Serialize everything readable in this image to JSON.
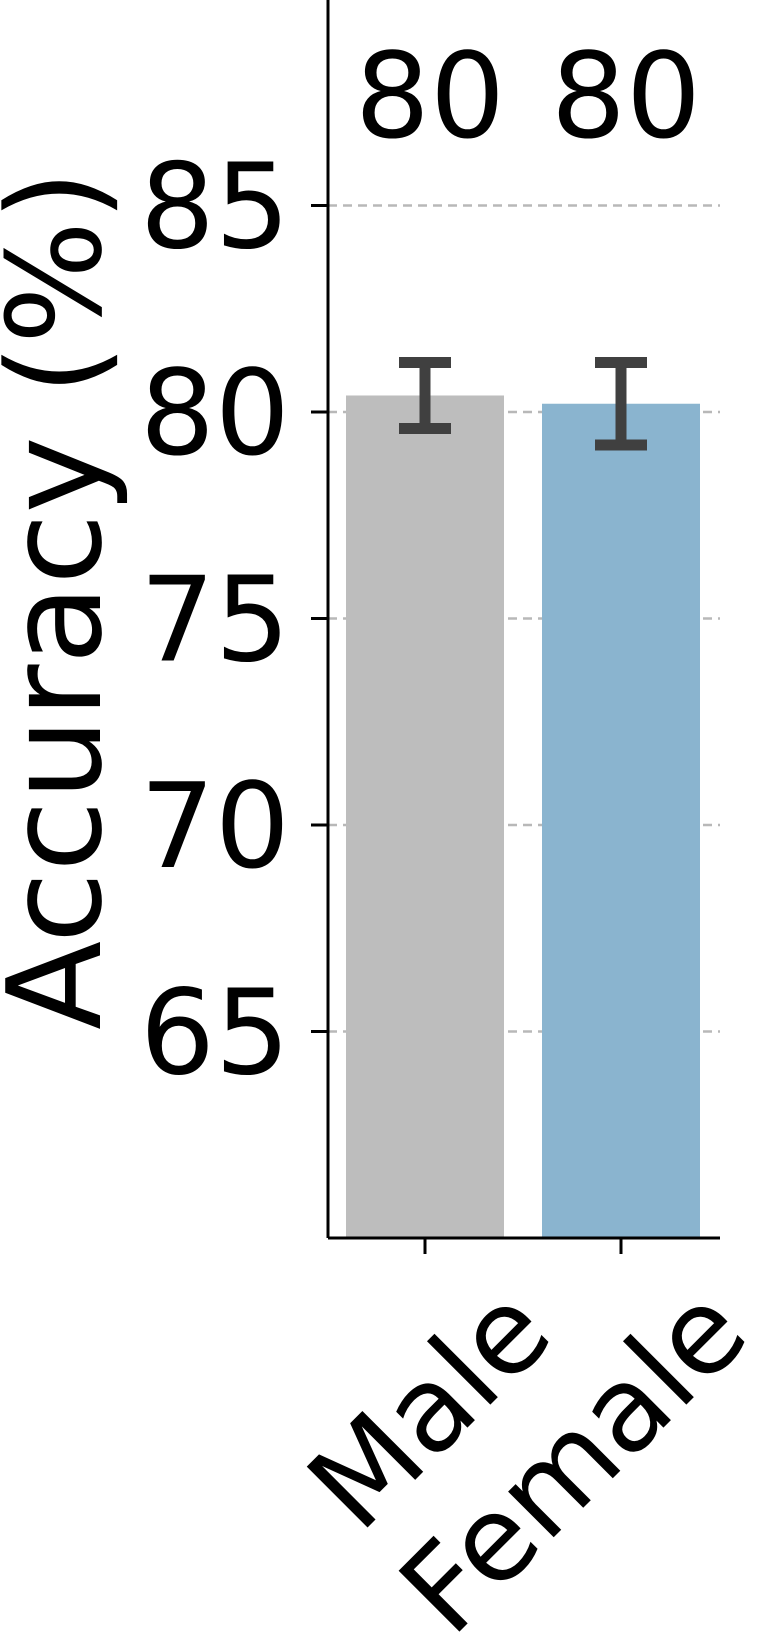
{
  "chart_data": {
    "type": "bar",
    "title": "",
    "xlabel": "",
    "ylabel": "Accuracy (%)",
    "categories": [
      "Male",
      "Female"
    ],
    "values": [
      80.4,
      80.2
    ],
    "errors": [
      0.8,
      1.0
    ],
    "data_labels": [
      "80",
      "80"
    ],
    "colors": [
      "#bdbdbd",
      "#8ab4cf"
    ],
    "error_color": "#404040",
    "ylim": [
      60,
      90
    ],
    "yticks": [
      65,
      70,
      75,
      80,
      85
    ],
    "grid": true,
    "grid_style": "dashed",
    "legend": "none"
  }
}
